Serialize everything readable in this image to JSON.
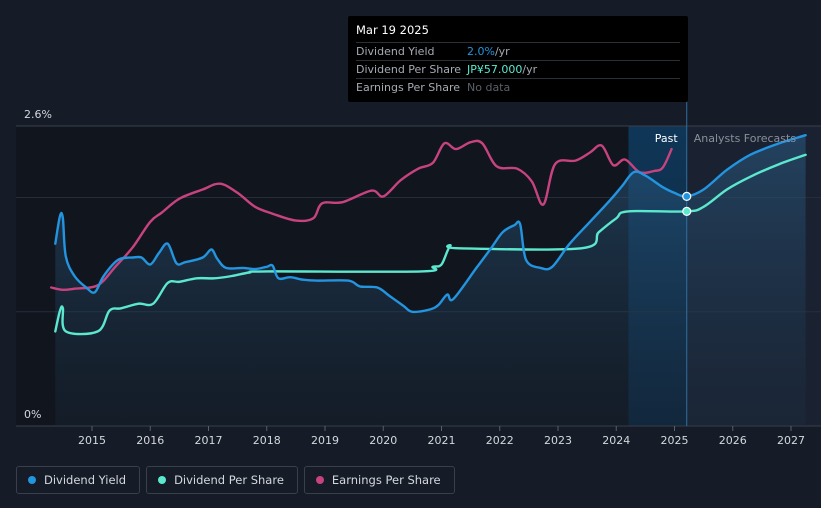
{
  "tooltip": {
    "date": "Mar 19 2025",
    "rows": [
      {
        "label": "Dividend Yield",
        "value": "2.0%",
        "unit": " /yr"
      },
      {
        "label": "Dividend Per Share",
        "value": "JP¥57.000",
        "unit": " /yr"
      },
      {
        "label": "Earnings Per Share",
        "value": "No data",
        "unit": ""
      }
    ]
  },
  "sections": {
    "past": "Past",
    "forecast": "Analysts Forecasts"
  },
  "legend": [
    {
      "label": "Dividend Yield",
      "color": "#2394df"
    },
    {
      "label": "Dividend Per Share",
      "color": "#5ce8cf"
    },
    {
      "label": "Earnings Per Share",
      "color": "#c7437f"
    }
  ],
  "chart_data": {
    "type": "line",
    "x_range": [
      2014.25,
      2027.25
    ],
    "y_range": [
      0,
      2.6
    ],
    "y_tick_labels": [
      "2.6%",
      "0%"
    ],
    "x_ticks": [
      2015,
      2016,
      2017,
      2018,
      2019,
      2020,
      2021,
      2022,
      2023,
      2024,
      2025,
      2026,
      2027
    ],
    "grid": true,
    "forecast_start": 2025.21,
    "highlight_start": 2024.21,
    "series": [
      {
        "name": "Dividend Yield",
        "color": "#2394df",
        "unit": "%",
        "points": [
          [
            2014.37,
            1.58
          ],
          [
            2014.45,
            1.82
          ],
          [
            2014.5,
            1.8
          ],
          [
            2014.55,
            1.47
          ],
          [
            2014.7,
            1.3
          ],
          [
            2014.9,
            1.2
          ],
          [
            2015.05,
            1.16
          ],
          [
            2015.2,
            1.3
          ],
          [
            2015.45,
            1.44
          ],
          [
            2015.7,
            1.46
          ],
          [
            2015.85,
            1.46
          ],
          [
            2016.0,
            1.4
          ],
          [
            2016.15,
            1.5
          ],
          [
            2016.3,
            1.58
          ],
          [
            2016.45,
            1.41
          ],
          [
            2016.6,
            1.42
          ],
          [
            2016.9,
            1.46
          ],
          [
            2017.05,
            1.53
          ],
          [
            2017.15,
            1.45
          ],
          [
            2017.3,
            1.37
          ],
          [
            2017.6,
            1.37
          ],
          [
            2017.8,
            1.36
          ],
          [
            2018.0,
            1.38
          ],
          [
            2018.1,
            1.39
          ],
          [
            2018.2,
            1.28
          ],
          [
            2018.4,
            1.29
          ],
          [
            2018.6,
            1.27
          ],
          [
            2018.85,
            1.26
          ],
          [
            2019.4,
            1.26
          ],
          [
            2019.6,
            1.21
          ],
          [
            2019.9,
            1.2
          ],
          [
            2020.1,
            1.13
          ],
          [
            2020.35,
            1.04
          ],
          [
            2020.5,
            0.99
          ],
          [
            2020.8,
            1.01
          ],
          [
            2020.95,
            1.05
          ],
          [
            2021.1,
            1.14
          ],
          [
            2021.2,
            1.1
          ],
          [
            2021.6,
            1.37
          ],
          [
            2021.85,
            1.54
          ],
          [
            2022.05,
            1.68
          ],
          [
            2022.25,
            1.74
          ],
          [
            2022.35,
            1.75
          ],
          [
            2022.45,
            1.44
          ],
          [
            2022.7,
            1.37
          ],
          [
            2022.9,
            1.38
          ],
          [
            2023.2,
            1.58
          ],
          [
            2023.55,
            1.77
          ],
          [
            2023.9,
            1.96
          ],
          [
            2024.1,
            2.08
          ],
          [
            2024.3,
            2.2
          ],
          [
            2024.5,
            2.17
          ],
          [
            2024.8,
            2.07
          ],
          [
            2025.0,
            2.02
          ],
          [
            2025.21,
            1.99
          ],
          [
            2025.5,
            2.05
          ],
          [
            2025.9,
            2.22
          ],
          [
            2026.3,
            2.35
          ],
          [
            2026.8,
            2.45
          ],
          [
            2027.25,
            2.52
          ]
        ]
      },
      {
        "name": "Dividend Per Share",
        "color": "#5ce8cf",
        "unit": "JP¥",
        "points": [
          [
            2014.37,
            0.82
          ],
          [
            2014.45,
            1.0
          ],
          [
            2014.5,
            1.02
          ],
          [
            2014.55,
            0.82
          ],
          [
            2015.1,
            0.82
          ],
          [
            2015.3,
            1.0
          ],
          [
            2015.5,
            1.02
          ],
          [
            2015.8,
            1.06
          ],
          [
            2016.05,
            1.06
          ],
          [
            2016.3,
            1.24
          ],
          [
            2016.5,
            1.25
          ],
          [
            2016.8,
            1.28
          ],
          [
            2017.1,
            1.28
          ],
          [
            2017.4,
            1.3
          ],
          [
            2017.7,
            1.33
          ],
          [
            2018.0,
            1.34
          ],
          [
            2020.65,
            1.34
          ],
          [
            2020.85,
            1.38
          ],
          [
            2021.0,
            1.4
          ],
          [
            2021.15,
            1.56
          ],
          [
            2021.3,
            1.54
          ],
          [
            2023.4,
            1.54
          ],
          [
            2023.7,
            1.68
          ],
          [
            2024.0,
            1.8
          ],
          [
            2024.2,
            1.86
          ],
          [
            2025.21,
            1.86
          ],
          [
            2025.5,
            1.9
          ],
          [
            2025.9,
            2.05
          ],
          [
            2026.3,
            2.16
          ],
          [
            2026.8,
            2.27
          ],
          [
            2027.25,
            2.35
          ]
        ]
      },
      {
        "name": "Earnings Per Share",
        "color": "#c7437f",
        "unit": "JP¥",
        "points": [
          [
            2014.3,
            1.2
          ],
          [
            2014.5,
            1.18
          ],
          [
            2014.7,
            1.19
          ],
          [
            2015.1,
            1.22
          ],
          [
            2015.4,
            1.38
          ],
          [
            2015.7,
            1.55
          ],
          [
            2016.0,
            1.77
          ],
          [
            2016.2,
            1.85
          ],
          [
            2016.5,
            1.97
          ],
          [
            2016.9,
            2.05
          ],
          [
            2017.2,
            2.1
          ],
          [
            2017.5,
            2.02
          ],
          [
            2017.8,
            1.9
          ],
          [
            2018.1,
            1.84
          ],
          [
            2018.5,
            1.78
          ],
          [
            2018.8,
            1.8
          ],
          [
            2018.95,
            1.93
          ],
          [
            2019.3,
            1.94
          ],
          [
            2019.8,
            2.04
          ],
          [
            2020.0,
            1.99
          ],
          [
            2020.3,
            2.13
          ],
          [
            2020.6,
            2.23
          ],
          [
            2020.85,
            2.28
          ],
          [
            2021.05,
            2.45
          ],
          [
            2021.25,
            2.4
          ],
          [
            2021.5,
            2.46
          ],
          [
            2021.7,
            2.45
          ],
          [
            2021.95,
            2.25
          ],
          [
            2022.3,
            2.23
          ],
          [
            2022.55,
            2.12
          ],
          [
            2022.75,
            1.92
          ],
          [
            2022.95,
            2.27
          ],
          [
            2023.3,
            2.3
          ],
          [
            2023.55,
            2.37
          ],
          [
            2023.75,
            2.43
          ],
          [
            2023.95,
            2.26
          ],
          [
            2024.15,
            2.31
          ],
          [
            2024.4,
            2.2
          ],
          [
            2024.65,
            2.21
          ],
          [
            2024.8,
            2.24
          ],
          [
            2024.95,
            2.4
          ]
        ]
      }
    ],
    "markers": [
      {
        "series": "Dividend Yield",
        "x": 2025.21,
        "y": 1.99
      },
      {
        "series": "Dividend Per Share",
        "x": 2025.21,
        "y": 1.86
      }
    ]
  }
}
